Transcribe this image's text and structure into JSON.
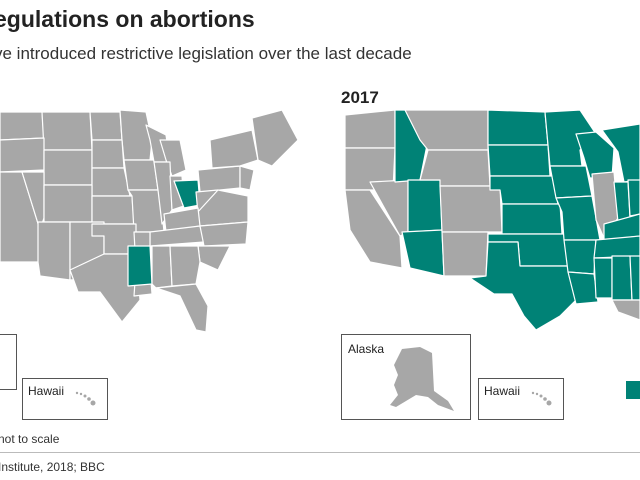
{
  "title": "egulations on abortions",
  "subtitle": "ve introduced restrictive legislation over the last decade",
  "colors": {
    "restrictive": "#008276",
    "none": "#a7a7a7",
    "border": "#ffffff"
  },
  "maps": [
    {
      "year": "",
      "highlighted_states": [
        "Mississippi",
        "Ohio"
      ]
    },
    {
      "year": "2017",
      "highlighted_states": [
        "Idaho",
        "Utah",
        "Arizona",
        "North Dakota",
        "South Dakota",
        "Nebraska",
        "Kansas",
        "Oklahoma",
        "Texas",
        "Minnesota",
        "Iowa",
        "Missouri",
        "Arkansas",
        "Louisiana",
        "Wisconsin",
        "Michigan",
        "Indiana",
        "Ohio",
        "Kentucky",
        "Tennessee",
        "Mississippi",
        "Alabama",
        "Georgia"
      ]
    }
  ],
  "insets": {
    "alaska_label": "Alaska",
    "hawaii_label": "Hawaii"
  },
  "note": "not to scale",
  "source": "Institute, 2018; BBC"
}
